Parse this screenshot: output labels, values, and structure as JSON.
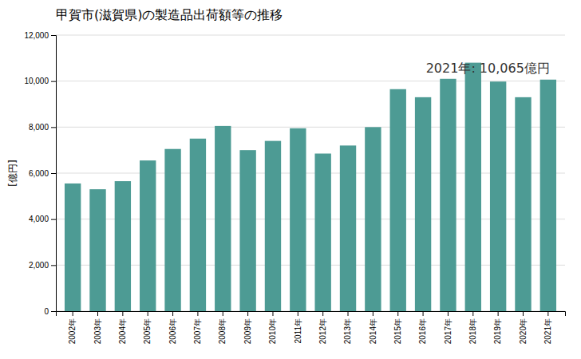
{
  "chart_data": {
    "type": "bar",
    "title": "甲賀市(滋賀県)の製造品出荷額等の推移",
    "ylabel": "[億円]",
    "annotation": "2021年: 10,065億円",
    "categories": [
      "2002年",
      "2003年",
      "2004年",
      "2005年",
      "2006年",
      "2007年",
      "2008年",
      "2009年",
      "2010年",
      "2011年",
      "2012年",
      "2013年",
      "2014年",
      "2015年",
      "2016年",
      "2017年",
      "2018年",
      "2019年",
      "2020年",
      "2021年"
    ],
    "values": [
      5550,
      5300,
      5650,
      6550,
      7050,
      7500,
      8050,
      7000,
      7400,
      7950,
      6850,
      7200,
      8000,
      9650,
      9300,
      10100,
      10800,
      9980,
      9300,
      10065
    ],
    "color": "#4d9b94",
    "ylim": [
      0,
      12000
    ],
    "yticks": [
      0,
      {
        "value": 2000,
        "label": "2,000"
      },
      {
        "value": 4000,
        "label": "4,000"
      },
      {
        "value": 6000,
        "label": "6,000"
      },
      {
        "value": 8000,
        "label": "8,000"
      },
      {
        "value": 10000,
        "label": "10,000"
      },
      {
        "value": 12000,
        "label": "12,000"
      }
    ],
    "grid": true
  }
}
